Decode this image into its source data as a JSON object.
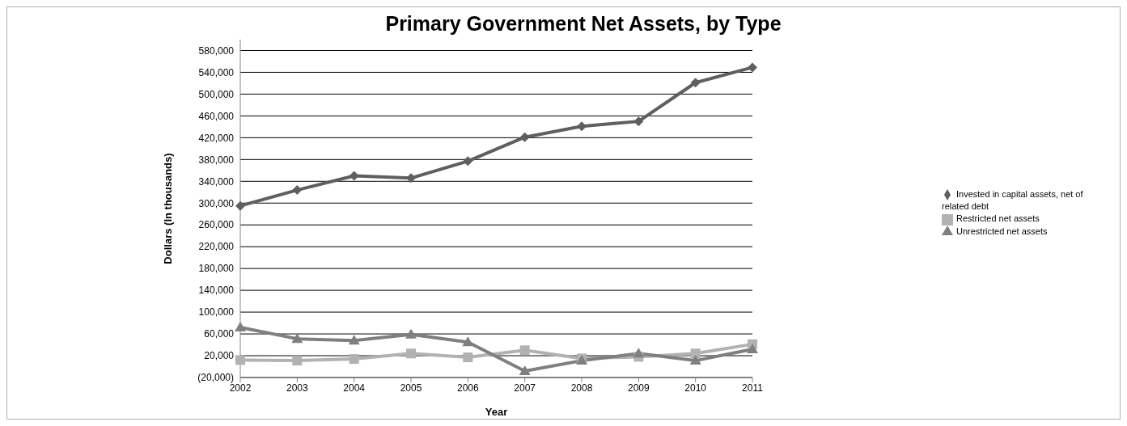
{
  "chart_data": {
    "type": "line",
    "title": "Primary Government Net Assets, by Type",
    "xlabel": "Year",
    "ylabel": "Dollars (In thousands)",
    "categories": [
      "2002",
      "2003",
      "2004",
      "2005",
      "2006",
      "2007",
      "2008",
      "2009",
      "2010",
      "2011"
    ],
    "series": [
      {
        "name": "Invested in capital assets, net of related debt",
        "color": "#5f5f5f",
        "marker": "diamond",
        "values": [
          295000,
          324000,
          350000,
          346000,
          377000,
          421000,
          441000,
          450000,
          521000,
          549000
        ]
      },
      {
        "name": "Restricted net assets",
        "color": "#b2b2b2",
        "marker": "square",
        "values": [
          12000,
          11000,
          14000,
          24000,
          17000,
          30000,
          15000,
          18000,
          24000,
          41000
        ]
      },
      {
        "name": "Unrestricted net assets",
        "color": "#7f7f7f",
        "marker": "triangle",
        "values": [
          72000,
          51000,
          48000,
          59000,
          45000,
          -8000,
          11000,
          24000,
          11000,
          32000
        ]
      }
    ],
    "ylim": [
      -20000,
      600000
    ],
    "yticks": [
      {
        "value": -20000,
        "label": "(20,000)"
      },
      {
        "value": 20000,
        "label": "20,000"
      },
      {
        "value": 60000,
        "label": "60,000"
      },
      {
        "value": 100000,
        "label": "100,000"
      },
      {
        "value": 140000,
        "label": "140,000"
      },
      {
        "value": 180000,
        "label": "180,000"
      },
      {
        "value": 220000,
        "label": "220,000"
      },
      {
        "value": 260000,
        "label": "260,000"
      },
      {
        "value": 300000,
        "label": "300,000"
      },
      {
        "value": 340000,
        "label": "340,000"
      },
      {
        "value": 380000,
        "label": "380,000"
      },
      {
        "value": 420000,
        "label": "420,000"
      },
      {
        "value": 460000,
        "label": "460,000"
      },
      {
        "value": 500000,
        "label": "500,000"
      },
      {
        "value": 540000,
        "label": "540,000"
      },
      {
        "value": 580000,
        "label": "580,000"
      }
    ],
    "grid": "y",
    "legend": "right",
    "line_style": "solid"
  }
}
